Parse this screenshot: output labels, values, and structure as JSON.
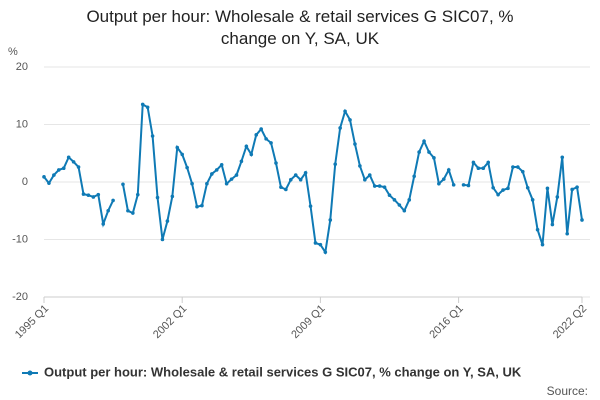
{
  "chart_data": {
    "type": "line",
    "title": "Output per hour: Wholesale & retail services G SIC07, % change on Y, SA, UK",
    "y_label": "%",
    "source": "Source:",
    "categories": [
      "1995 Q1",
      null,
      null,
      null,
      null,
      null,
      null,
      null,
      null,
      null,
      null,
      null,
      null,
      null,
      null,
      null,
      null,
      null,
      null,
      null,
      null,
      null,
      null,
      null,
      null,
      null,
      null,
      null,
      "2002 Q1",
      null,
      null,
      null,
      null,
      null,
      null,
      null,
      null,
      null,
      null,
      null,
      null,
      null,
      null,
      null,
      null,
      null,
      null,
      null,
      null,
      null,
      null,
      null,
      null,
      null,
      null,
      null,
      "2009 Q1",
      null,
      null,
      null,
      null,
      null,
      null,
      null,
      null,
      null,
      null,
      null,
      null,
      null,
      null,
      null,
      null,
      null,
      null,
      null,
      null,
      null,
      null,
      null,
      null,
      null,
      null,
      null,
      "2016 Q1",
      null,
      null,
      null,
      null,
      null,
      null,
      null,
      null,
      null,
      null,
      null,
      null,
      null,
      null,
      null,
      null,
      null,
      null,
      null,
      null,
      null,
      null,
      null,
      null,
      "2022 Q2"
    ],
    "series": [
      {
        "name": "Output per hour: Wholesale & retail services G SIC07, % change on Y, SA, UK",
        "color": "#0f7ab5",
        "values": [
          0.9,
          -0.2,
          1.2,
          2.1,
          2.4,
          4.3,
          3.5,
          2.6,
          -2.1,
          -2.3,
          -2.6,
          -2.2,
          -7.3,
          -5,
          -3.2,
          null,
          -0.4,
          -5,
          -5.4,
          -2.2,
          13.5,
          13,
          8,
          -2.7,
          -10,
          -6.8,
          -2.5,
          6,
          4.8,
          2.5,
          -0.3,
          -4.3,
          -4.1,
          -0.3,
          1.4,
          2.1,
          3,
          -0.3,
          0.5,
          1.2,
          3.6,
          6.2,
          4.8,
          8.2,
          9.2,
          7.5,
          6.8,
          3.3,
          -0.9,
          -1.3,
          0.4,
          1.2,
          0.4,
          1.6,
          -4.2,
          -10.6,
          -10.9,
          -12.2,
          -6.6,
          3.1,
          9.4,
          12.3,
          10.8,
          6.6,
          2.8,
          0.4,
          1.2,
          -0.7,
          -0.7,
          -0.9,
          -2.3,
          -3.1,
          -4,
          -5,
          -3.1,
          1,
          5.2,
          7.1,
          5.2,
          4.2,
          -0.3,
          0.5,
          2.1,
          -0.5,
          null,
          -0.5,
          -0.6,
          3.4,
          2.4,
          2.4,
          3.4,
          -1,
          -2.2,
          -1.4,
          -1.1,
          2.6,
          2.6,
          1.8,
          -1,
          -3.1,
          -8.3,
          -10.9,
          -1.1,
          -7.4,
          -2.6,
          4.3,
          -9,
          -1.3,
          -0.9,
          -6.6
        ]
      }
    ],
    "ylim": [
      -20,
      20
    ],
    "yticks": [
      -20,
      -10,
      0,
      10,
      20
    ],
    "grid": true
  }
}
